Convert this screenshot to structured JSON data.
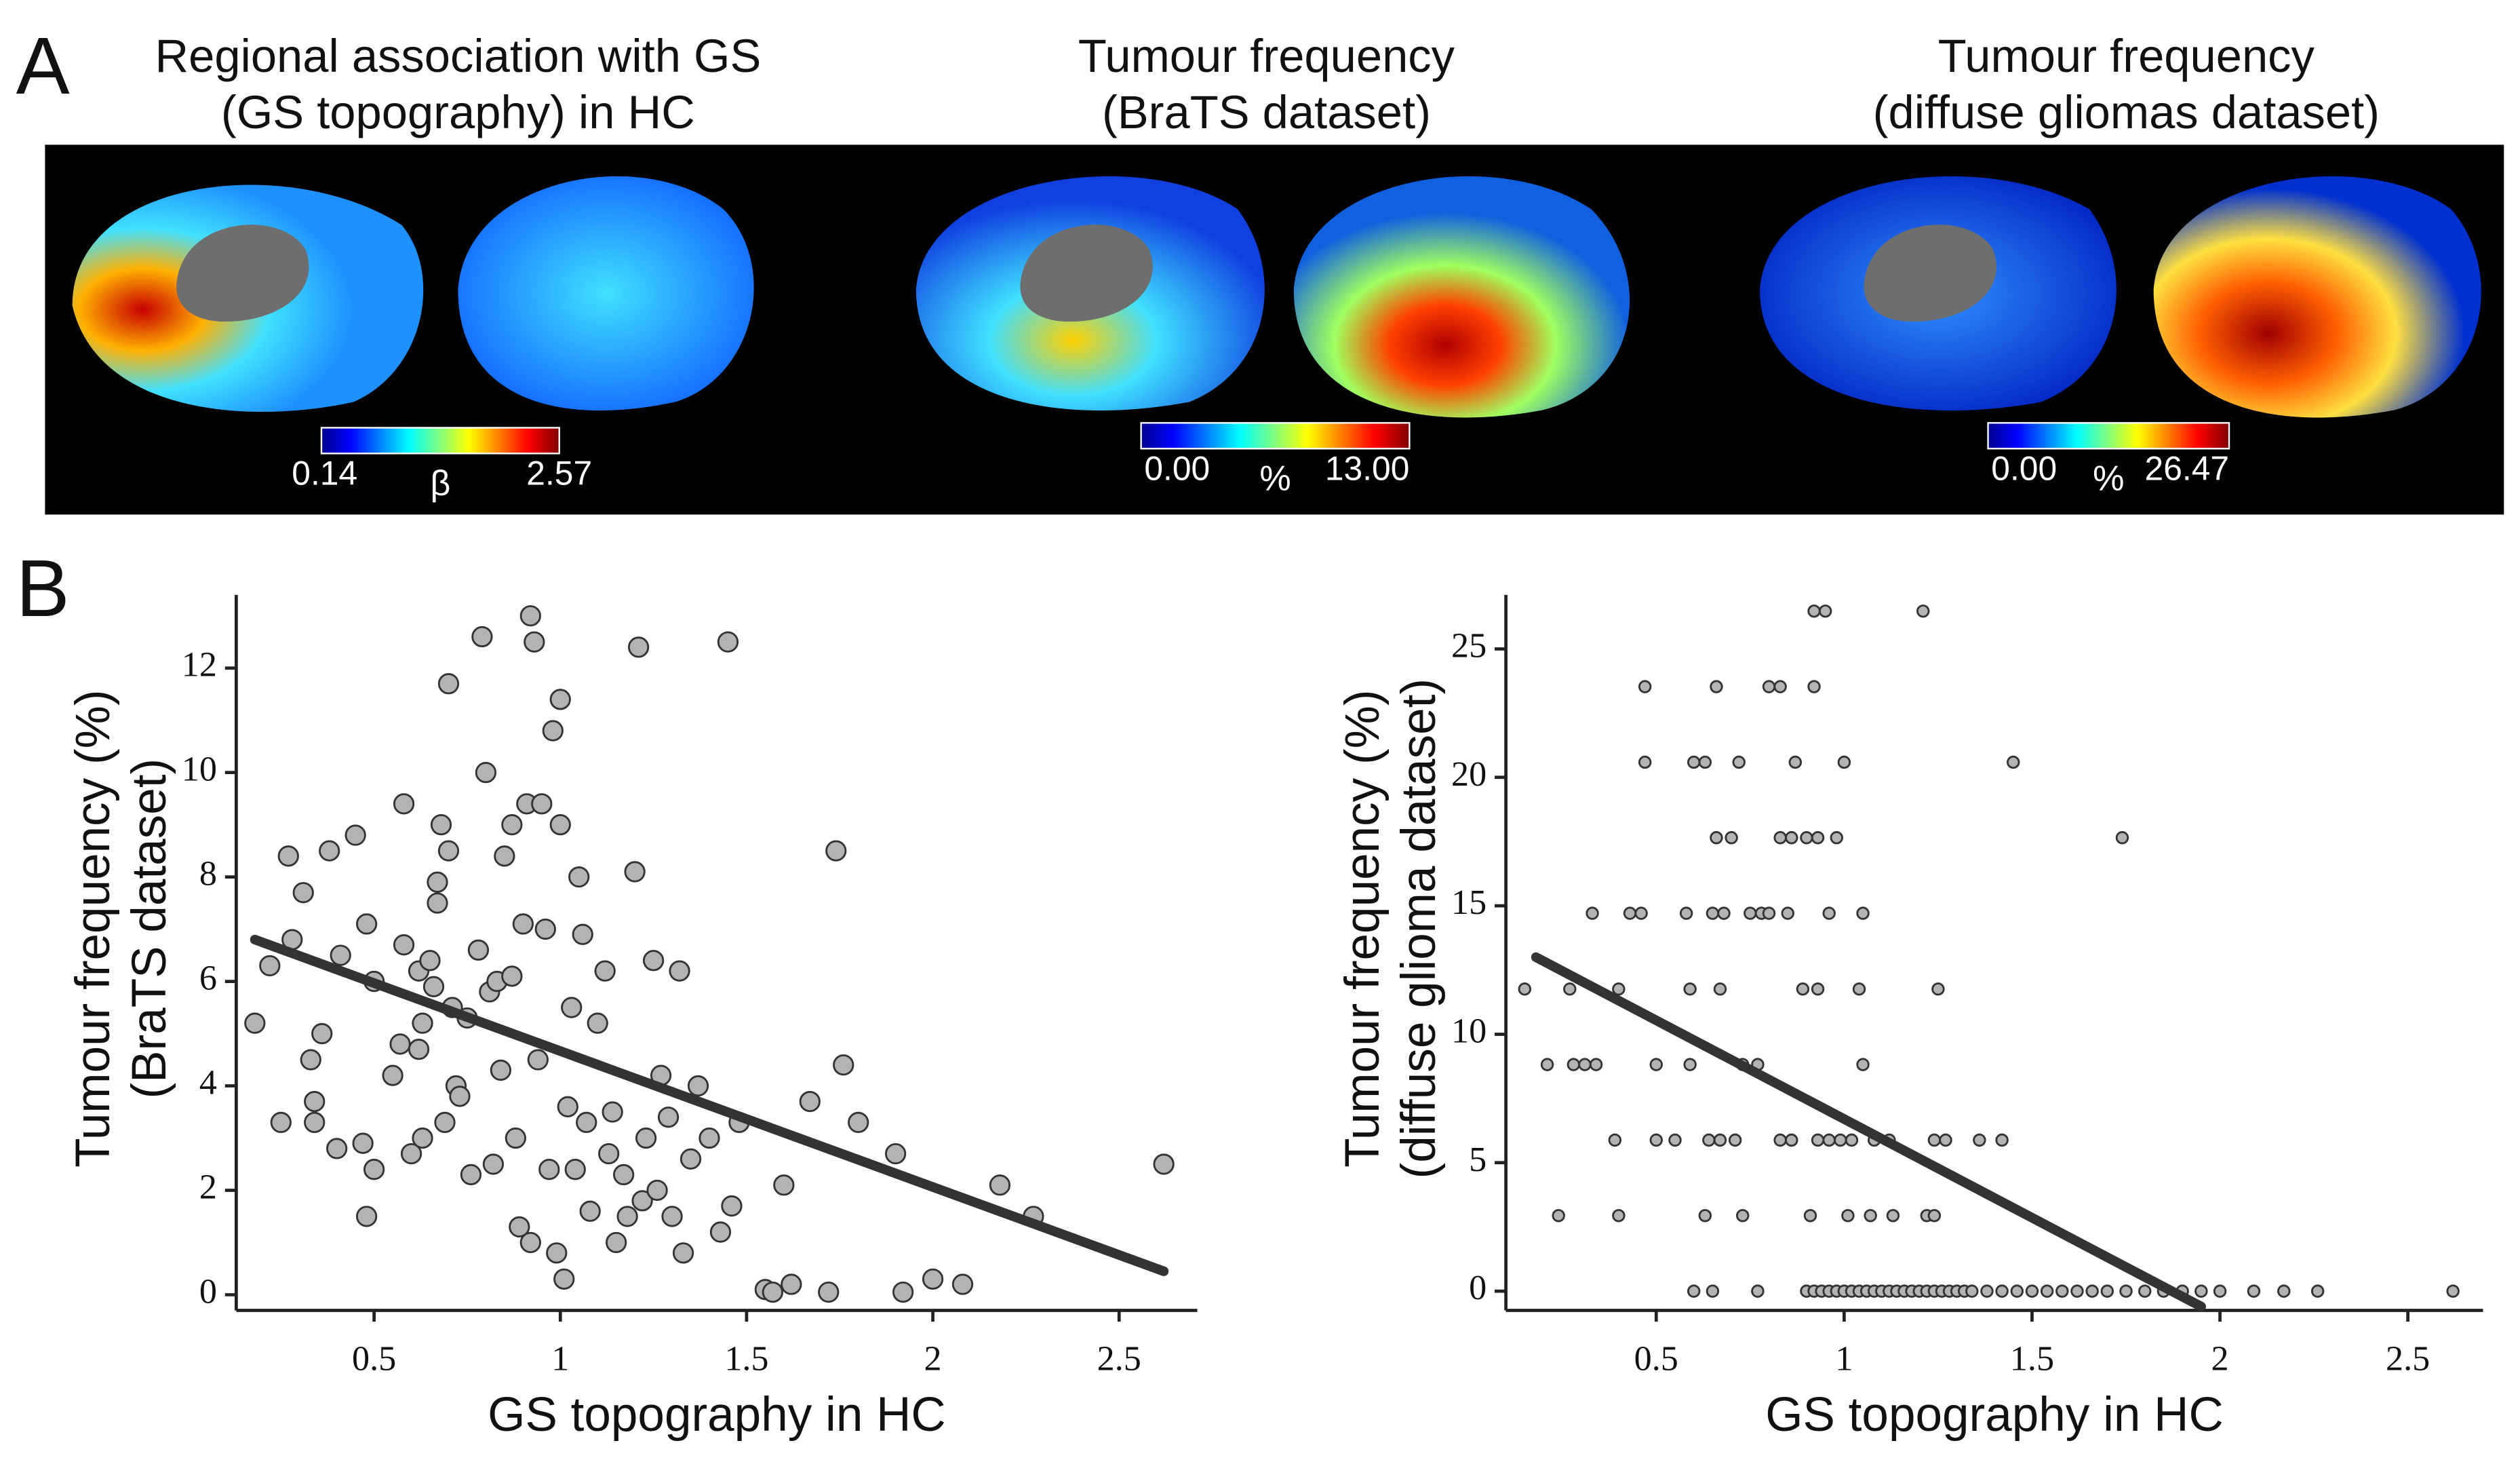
{
  "panel_a": {
    "label": "A",
    "maps": [
      {
        "title": [
          "Regional association with GS",
          "(GS topography) in HC"
        ],
        "colorbar": {
          "min": "0.14",
          "unit": "β",
          "max": "2.57"
        }
      },
      {
        "title": [
          "Tumour frequency",
          "(BraTS dataset)"
        ],
        "colorbar": {
          "min": "0.00",
          "unit": "%",
          "max": "13.00"
        }
      },
      {
        "title": [
          "Tumour frequency",
          "(diffuse gliomas dataset)"
        ],
        "colorbar": {
          "min": "0.00",
          "unit": "%",
          "max": "26.47"
        }
      }
    ]
  },
  "panel_b_label": "B",
  "chart_data": [
    {
      "type": "scatter",
      "xlabel": "GS topography in HC",
      "ylabel": [
        "Tumour frequency (%)",
        "(BraTS dataset)"
      ],
      "xlim": [
        0.13,
        2.71
      ],
      "ylim": [
        -0.3,
        13.4
      ],
      "xticks": [
        0.5,
        1,
        1.5,
        2,
        2.5
      ],
      "yticks": [
        0,
        2,
        4,
        6,
        8,
        10,
        12
      ],
      "point_color": "#b3b3b3",
      "line_color": "#333333",
      "x": [
        0.18,
        0.22,
        0.25,
        0.27,
        0.28,
        0.31,
        0.33,
        0.34,
        0.34,
        0.36,
        0.38,
        0.4,
        0.41,
        0.45,
        0.47,
        0.48,
        0.48,
        0.5,
        0.5,
        0.55,
        0.57,
        0.58,
        0.58,
        0.6,
        0.62,
        0.62,
        0.63,
        0.63,
        0.65,
        0.66,
        0.67,
        0.67,
        0.68,
        0.69,
        0.7,
        0.7,
        0.71,
        0.72,
        0.73,
        0.75,
        0.76,
        0.78,
        0.79,
        0.8,
        0.81,
        0.82,
        0.83,
        0.84,
        0.85,
        0.87,
        0.87,
        0.88,
        0.89,
        0.9,
        0.91,
        0.92,
        0.92,
        0.93,
        0.94,
        0.95,
        0.96,
        0.97,
        0.98,
        0.99,
        1.0,
        1.0,
        1.01,
        1.02,
        1.03,
        1.04,
        1.05,
        1.06,
        1.07,
        1.08,
        1.1,
        1.12,
        1.13,
        1.14,
        1.15,
        1.17,
        1.18,
        1.2,
        1.21,
        1.22,
        1.23,
        1.25,
        1.26,
        1.27,
        1.29,
        1.3,
        1.32,
        1.33,
        1.35,
        1.37,
        1.4,
        1.43,
        1.45,
        1.46,
        1.48,
        1.55,
        1.57,
        1.6,
        1.62,
        1.67,
        1.72,
        1.74,
        1.76,
        1.8,
        1.9,
        1.92,
        2.0,
        2.08,
        2.18,
        2.27,
        2.62
      ],
      "values": [
        5.2,
        6.3,
        3.3,
        8.4,
        6.8,
        7.7,
        4.5,
        3.3,
        3.7,
        5.0,
        8.5,
        2.8,
        6.5,
        8.8,
        2.9,
        1.5,
        7.1,
        2.4,
        6.0,
        4.2,
        4.8,
        9.4,
        6.7,
        2.7,
        6.2,
        4.7,
        3.0,
        5.2,
        6.4,
        5.9,
        7.5,
        7.9,
        9.0,
        3.3,
        8.5,
        11.7,
        5.5,
        4.0,
        3.8,
        5.3,
        2.3,
        6.6,
        12.6,
        10.0,
        5.8,
        2.5,
        6.0,
        4.3,
        8.4,
        9.0,
        6.1,
        3.0,
        1.3,
        7.1,
        9.4,
        1.0,
        13.0,
        12.5,
        4.5,
        9.4,
        7.0,
        2.4,
        10.8,
        0.8,
        11.4,
        9.0,
        0.3,
        3.6,
        5.5,
        2.4,
        8.0,
        6.9,
        3.3,
        1.6,
        5.2,
        6.2,
        2.7,
        3.5,
        1.0,
        2.3,
        1.5,
        8.1,
        12.4,
        1.8,
        3.0,
        6.4,
        2.0,
        4.2,
        3.4,
        1.5,
        6.2,
        0.8,
        2.6,
        4.0,
        3.0,
        1.2,
        12.5,
        1.7,
        3.3,
        0.1,
        0.05,
        2.1,
        0.2,
        3.7,
        0.05,
        8.5,
        4.4,
        3.3,
        2.7,
        0.05,
        0.3,
        0.2,
        2.1,
        1.5,
        2.5
      ],
      "fit": {
        "x": [
          0.18,
          2.62
        ],
        "values": [
          6.8,
          0.45
        ]
      }
    },
    {
      "type": "scatter",
      "xlabel": "GS topography in HC",
      "ylabel": [
        "Tumour frequency (%)",
        "(diffuse glioma dataset)"
      ],
      "xlim": [
        0.1,
        2.7
      ],
      "ylim": [
        -0.75,
        27.1
      ],
      "xticks": [
        0.5,
        1,
        1.5,
        2,
        2.5
      ],
      "yticks": [
        0,
        5,
        10,
        15,
        20,
        25
      ],
      "point_color": "#b3b3b3",
      "line_color": "#333333",
      "x": [
        0.92,
        0.95,
        1.21,
        0.47,
        0.66,
        0.8,
        0.83,
        0.92,
        0.47,
        0.6,
        0.63,
        0.72,
        0.87,
        1.0,
        1.45,
        0.66,
        0.7,
        0.83,
        0.86,
        0.9,
        0.93,
        0.98,
        1.74,
        0.33,
        0.43,
        0.46,
        0.58,
        0.65,
        0.68,
        0.75,
        0.78,
        0.8,
        0.85,
        0.96,
        1.05,
        0.15,
        0.27,
        0.4,
        0.59,
        0.67,
        0.89,
        0.93,
        1.04,
        1.25,
        0.21,
        0.28,
        0.31,
        0.34,
        0.5,
        0.59,
        0.73,
        0.77,
        1.05,
        0.39,
        0.5,
        0.55,
        0.64,
        0.67,
        0.71,
        0.83,
        0.86,
        0.93,
        0.96,
        0.99,
        1.02,
        1.08,
        1.12,
        1.24,
        1.27,
        1.36,
        1.42,
        0.24,
        0.4,
        0.63,
        0.73,
        0.91,
        1.01,
        1.07,
        1.13,
        1.22,
        1.24,
        0.6,
        0.65,
        0.77,
        0.9,
        0.92,
        0.94,
        0.96,
        0.98,
        1.0,
        1.02,
        1.04,
        1.06,
        1.08,
        1.1,
        1.12,
        1.14,
        1.16,
        1.18,
        1.2,
        1.22,
        1.24,
        1.26,
        1.28,
        1.3,
        1.32,
        1.34,
        1.38,
        1.42,
        1.46,
        1.5,
        1.54,
        1.58,
        1.62,
        1.66,
        1.7,
        1.75,
        1.8,
        1.85,
        1.9,
        1.95,
        2.0,
        2.09,
        2.17,
        2.26,
        2.62
      ],
      "values": [
        26.47,
        26.47,
        26.47,
        23.53,
        23.53,
        23.53,
        23.53,
        23.53,
        20.59,
        20.59,
        20.59,
        20.59,
        20.59,
        20.59,
        20.59,
        17.65,
        17.65,
        17.65,
        17.65,
        17.65,
        17.65,
        17.65,
        17.65,
        14.71,
        14.71,
        14.71,
        14.71,
        14.71,
        14.71,
        14.71,
        14.71,
        14.71,
        14.71,
        14.71,
        14.71,
        11.76,
        11.76,
        11.76,
        11.76,
        11.76,
        11.76,
        11.76,
        11.76,
        11.76,
        8.82,
        8.82,
        8.82,
        8.82,
        8.82,
        8.82,
        8.82,
        8.82,
        8.82,
        5.88,
        5.88,
        5.88,
        5.88,
        5.88,
        5.88,
        5.88,
        5.88,
        5.88,
        5.88,
        5.88,
        5.88,
        5.88,
        5.88,
        5.88,
        5.88,
        5.88,
        5.88,
        2.94,
        2.94,
        2.94,
        2.94,
        2.94,
        2.94,
        2.94,
        2.94,
        2.94,
        2.94,
        0,
        0,
        0,
        0,
        0,
        0,
        0,
        0,
        0,
        0,
        0,
        0,
        0,
        0,
        0,
        0,
        0,
        0,
        0,
        0,
        0,
        0,
        0,
        0,
        0,
        0,
        0,
        0,
        0,
        0,
        0,
        0,
        0,
        0,
        0,
        0,
        0,
        0,
        0,
        0,
        0,
        0,
        0,
        0,
        0
      ],
      "fit": {
        "x": [
          0.18,
          1.95
        ],
        "values": [
          13.0,
          -0.6
        ]
      }
    }
  ]
}
